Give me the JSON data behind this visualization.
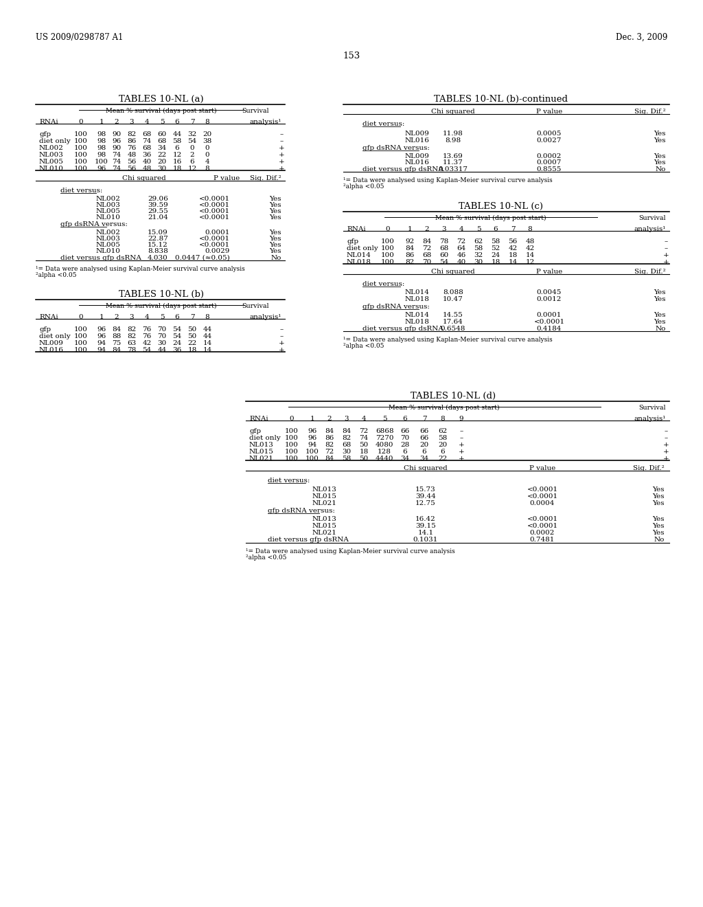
{
  "header_left": "US 2009/0298787 A1",
  "header_right": "Dec. 3, 2009",
  "page_number": "153",
  "bg": "#ffffff",
  "tables": {
    "table_a": {
      "title": "TABLES 10-NL (a)",
      "sub_header": "Mean % survival (days post start)",
      "survival_header": "Survival",
      "data_rows": [
        [
          "gfp",
          "100",
          "98",
          "90",
          "82",
          "68",
          "60",
          "44",
          "32",
          "20",
          "–"
        ],
        [
          "diet only",
          "100",
          "98",
          "96",
          "86",
          "74",
          "68",
          "58",
          "54",
          "38",
          "–"
        ],
        [
          "NL002",
          "100",
          "98",
          "90",
          "76",
          "68",
          "34",
          "6",
          "0",
          "0",
          "+"
        ],
        [
          "NL003",
          "100",
          "98",
          "74",
          "48",
          "36",
          "22",
          "12",
          "2",
          "0",
          "+"
        ],
        [
          "NL005",
          "100",
          "100",
          "74",
          "56",
          "40",
          "20",
          "16",
          "6",
          "4",
          "+"
        ],
        [
          "NL010",
          "100",
          "96",
          "74",
          "56",
          "48",
          "30",
          "18",
          "12",
          "8",
          "+"
        ]
      ],
      "diet_versus_rows": [
        [
          "NL002",
          "29.06",
          "<0.0001",
          "Yes"
        ],
        [
          "NL003",
          "39.59",
          "<0.0001",
          "Yes"
        ],
        [
          "NL005",
          "29.55",
          "<0.0001",
          "Yes"
        ],
        [
          "NL010",
          "21.04",
          "<0.0001",
          "Yes"
        ]
      ],
      "gfp_versus_rows": [
        [
          "NL002",
          "15.09",
          "0.0001",
          "Yes"
        ],
        [
          "NL003",
          "22.87",
          "<0.0001",
          "Yes"
        ],
        [
          "NL005",
          "15.12",
          "<0.0001",
          "Yes"
        ],
        [
          "NL010",
          "8.838",
          "0.0029",
          "Yes"
        ],
        [
          "diet versus gfp dsRNA",
          "4.030",
          "0.0447 (≈0.05)",
          "No"
        ]
      ],
      "footnotes": [
        "¹= Data were analysed using Kaplan-Meier survival curve analysis",
        "²alpha <0.05"
      ]
    },
    "table_b": {
      "title": "TABLES 10-NL (b)",
      "sub_header": "Mean % survival (days post start)",
      "survival_header": "Survival",
      "data_rows": [
        [
          "gfp",
          "100",
          "96",
          "84",
          "82",
          "76",
          "70",
          "54",
          "50",
          "44",
          "–"
        ],
        [
          "diet only",
          "100",
          "96",
          "88",
          "82",
          "76",
          "70",
          "54",
          "50",
          "44",
          "–"
        ],
        [
          "NL009",
          "100",
          "94",
          "75",
          "63",
          "42",
          "30",
          "24",
          "22",
          "14",
          "+"
        ],
        [
          "NL016",
          "100",
          "94",
          "84",
          "78",
          "54",
          "44",
          "36",
          "18",
          "14",
          "+"
        ]
      ],
      "footnotes": [
        "¹= Data were analysed using Kaplan-Meier survival curve analysis",
        "²alpha <0.05"
      ]
    },
    "table_bc": {
      "title": "TABLES 10-NL (b)-continued",
      "diet_versus_rows": [
        [
          "NL009",
          "11.98",
          "0.0005",
          "Yes"
        ],
        [
          "NL016",
          "8.98",
          "0.0027",
          "Yes"
        ]
      ],
      "gfp_versus_rows": [
        [
          "NL009",
          "13.69",
          "0.0002",
          "Yes"
        ],
        [
          "NL016",
          "11.37",
          "0.0007",
          "Yes"
        ],
        [
          "diet versus gfp dsRNA",
          "0.03317",
          "0.8555",
          "No"
        ]
      ],
      "footnotes": [
        "¹= Data were analysed using Kaplan-Meier survival curve analysis",
        "²alpha <0.05"
      ]
    },
    "table_c": {
      "title": "TABLES 10-NL (c)",
      "sub_header": "Mean % survival (days post start)",
      "survival_header": "Survival",
      "data_rows": [
        [
          "gfp",
          "100",
          "92",
          "84",
          "78",
          "72",
          "62",
          "58",
          "56",
          "48",
          "–"
        ],
        [
          "diet only",
          "100",
          "84",
          "72",
          "68",
          "64",
          "58",
          "52",
          "42",
          "42",
          "–"
        ],
        [
          "NL014",
          "100",
          "86",
          "68",
          "60",
          "46",
          "32",
          "24",
          "18",
          "14",
          "+"
        ],
        [
          "NL018",
          "100",
          "82",
          "70",
          "54",
          "40",
          "30",
          "18",
          "14",
          "12",
          "+"
        ]
      ],
      "diet_versus_rows": [
        [
          "NL014",
          "8.088",
          "0.0045",
          "Yes"
        ],
        [
          "NL018",
          "10.47",
          "0.0012",
          "Yes"
        ]
      ],
      "gfp_versus_rows": [
        [
          "NL014",
          "14.55",
          "0.0001",
          "Yes"
        ],
        [
          "NL018",
          "17.64",
          "<0.0001",
          "Yes"
        ],
        [
          "diet versus gfp dsRNA",
          "0.6548",
          "0.4184",
          "No"
        ]
      ],
      "footnotes": [
        "¹= Data were analysed using Kaplan-Meier survival curve analysis",
        "²alpha <0.05"
      ]
    },
    "table_d": {
      "title": "TABLES 10-NL (d)",
      "sub_header": "Mean % survival (days post start)",
      "survival_header": "Survival",
      "data_rows": [
        [
          "gfp",
          "100",
          "96",
          "84",
          "84",
          "72",
          "6868",
          "66",
          "66",
          "62",
          "–"
        ],
        [
          "diet only",
          "100",
          "96",
          "86",
          "82",
          "74",
          "7270",
          "70",
          "66",
          "58",
          "–"
        ],
        [
          "NL013",
          "100",
          "94",
          "82",
          "68",
          "50",
          "4080",
          "28",
          "20",
          "20",
          "+"
        ],
        [
          "NL015",
          "100",
          "100",
          "72",
          "30",
          "18",
          "128",
          "6",
          "6",
          "6",
          "+"
        ],
        [
          "NL021",
          "100",
          "100",
          "84",
          "58",
          "50",
          "4440",
          "34",
          "34",
          "22",
          "+"
        ]
      ],
      "diet_versus_rows": [
        [
          "NL013",
          "15.73",
          "<0.0001",
          "Yes"
        ],
        [
          "NL015",
          "39.44",
          "<0.0001",
          "Yes"
        ],
        [
          "NL021",
          "12.75",
          "0.0004",
          "Yes"
        ]
      ],
      "gfp_versus_rows": [
        [
          "NL013",
          "16.42",
          "<0.0001",
          "Yes"
        ],
        [
          "NL015",
          "39.15",
          "<0.0001",
          "Yes"
        ],
        [
          "NL021",
          "14.1",
          "0.0002",
          "Yes"
        ],
        [
          "diet versus gfp dsRNA",
          "0.1031",
          "0.7481",
          "No"
        ]
      ],
      "footnotes": [
        "¹= Data were analysed using Kaplan-Meier survival curve analysis",
        "²alpha <0.05"
      ]
    }
  }
}
